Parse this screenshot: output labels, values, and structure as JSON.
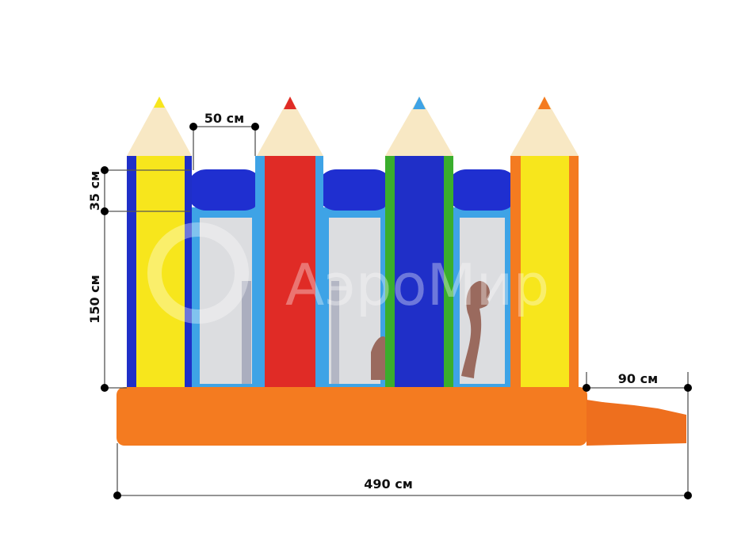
{
  "dimensions": {
    "window_width": "50 см",
    "roll_height": "35 см",
    "wall_height": "150 см",
    "ramp_length": "90 см",
    "total_length": "490 см"
  },
  "watermark": "АэроМир",
  "colors": {
    "base": "#f47b20",
    "pencil_yellow": "#f7e61c",
    "pencil_red": "#e02b26",
    "pencil_blue": "#1f2fc8",
    "roll_blue": "#1f2fd0",
    "frame_light_blue": "#3ea3e6",
    "trim_green": "#3aae2c",
    "wood_tip": "#f8e8c4"
  }
}
